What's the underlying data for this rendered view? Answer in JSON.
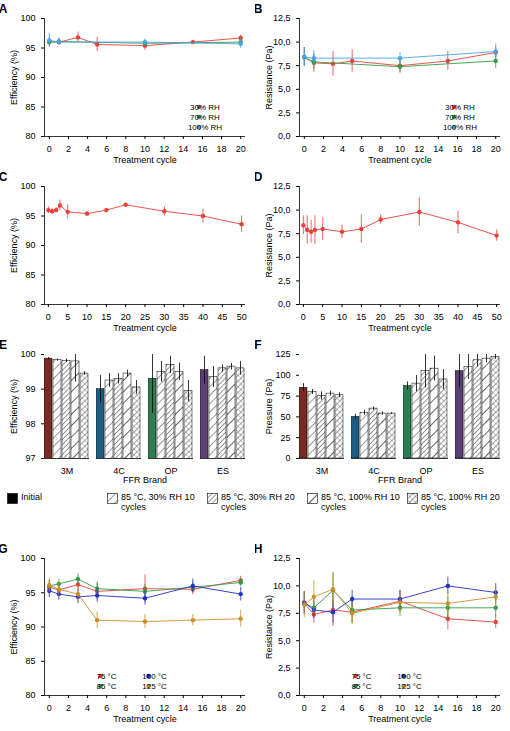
{
  "chart_data": [
    {
      "type": "line",
      "title": "A",
      "x_label": "Treatment cycle",
      "y_label": "Efficiency (%)",
      "xlim": [
        -0.5,
        20.5
      ],
      "xticks": [
        0,
        2,
        4,
        6,
        8,
        10,
        12,
        14,
        16,
        18,
        20
      ],
      "ylim": [
        80,
        100
      ],
      "yticks": [
        80,
        85,
        90,
        95,
        100
      ],
      "legend": "bottom-right",
      "marker": "circle",
      "series": [
        {
          "name": "30% RH",
          "color": "#e8403a",
          "x": [
            0,
            1,
            3,
            5,
            10,
            15,
            20
          ],
          "values": [
            96.0,
            96.0,
            96.8,
            95.6,
            95.4,
            96.0,
            96.7
          ],
          "errors": [
            0.8,
            0.6,
            0.9,
            1.2,
            0.8,
            0.3,
            0.5
          ]
        },
        {
          "name": "70% RH",
          "color": "#2f9e47",
          "x": [
            0,
            1,
            10,
            20
          ],
          "values": [
            96.0,
            96.1,
            95.8,
            96.0
          ],
          "errors": [
            0.6,
            0.5,
            0.6,
            0.5
          ]
        },
        {
          "name": "100% RH",
          "color": "#4aa3e8",
          "x": [
            0,
            1,
            10,
            20
          ],
          "values": [
            96.3,
            96.0,
            96.0,
            95.7
          ],
          "errors": [
            1.2,
            0.5,
            0.5,
            0.8
          ]
        }
      ]
    },
    {
      "type": "line",
      "title": "B",
      "x_label": "Treatment cycle",
      "y_label": "Resistance (Pa)",
      "xlim": [
        -0.5,
        20.5
      ],
      "xticks": [
        0,
        2,
        4,
        6,
        8,
        10,
        12,
        14,
        16,
        18,
        20
      ],
      "ylim": [
        0,
        12.5
      ],
      "yticks": [
        {
          "value": 0,
          "label": "0,0"
        },
        {
          "value": 2.5,
          "label": "2,5"
        },
        {
          "value": 5,
          "label": "5,0"
        },
        {
          "value": 7.5,
          "label": "7,5"
        },
        {
          "value": 10,
          "label": "10,0"
        },
        {
          "value": 12.5,
          "label": "12,5"
        }
      ],
      "legend": "bottom-right",
      "marker": "circle",
      "series": [
        {
          "name": "30% RH",
          "color": "#e8403a",
          "x": [
            0,
            1,
            3,
            5,
            10,
            15,
            20
          ],
          "values": [
            8.4,
            7.8,
            7.7,
            8.0,
            7.5,
            8.0,
            8.9
          ],
          "errors": [
            1.0,
            1.0,
            1.3,
            1.2,
            0.8,
            1.0,
            0.6
          ]
        },
        {
          "name": "70% RH",
          "color": "#2f9e47",
          "x": [
            0,
            1,
            10,
            20
          ],
          "values": [
            8.4,
            7.9,
            7.4,
            8.0
          ],
          "errors": [
            1.0,
            0.8,
            0.6,
            0.8
          ]
        },
        {
          "name": "100% RH",
          "color": "#4aa3e8",
          "x": [
            0,
            1,
            10,
            20
          ],
          "values": [
            8.4,
            8.3,
            8.3,
            9.0
          ],
          "errors": [
            1.0,
            0.8,
            0.6,
            0.8
          ]
        }
      ]
    },
    {
      "type": "line",
      "title": "C",
      "x_label": "Treatment cycle",
      "y_label": "Efficiency (%)",
      "xlim": [
        -1,
        51
      ],
      "xticks": [
        0,
        5,
        10,
        15,
        20,
        25,
        30,
        35,
        40,
        45,
        50
      ],
      "ylim": [
        80,
        100
      ],
      "yticks": [
        80,
        85,
        90,
        95,
        100
      ],
      "marker": "circle",
      "series": [
        {
          "color": "#e8403a",
          "x": [
            0,
            1,
            2,
            3,
            5,
            10,
            15,
            20,
            30,
            40,
            50
          ],
          "values": [
            96.0,
            95.8,
            96.0,
            96.8,
            95.7,
            95.4,
            96.0,
            96.9,
            95.8,
            95.0,
            93.6
          ],
          "errors": [
            0.6,
            0.5,
            0.4,
            0.9,
            1.2,
            0.4,
            0.3,
            0.2,
            0.8,
            1.2,
            1.4
          ]
        }
      ]
    },
    {
      "type": "line",
      "title": "D",
      "x_label": "Treatment cycle",
      "y_label": "Resistance (Pa)",
      "xlim": [
        -1,
        51
      ],
      "xticks": [
        0,
        5,
        10,
        15,
        20,
        25,
        30,
        35,
        40,
        45,
        50
      ],
      "ylim": [
        0,
        12.5
      ],
      "yticks": [
        {
          "value": 0,
          "label": "0,0"
        },
        {
          "value": 2.5,
          "label": "2,5"
        },
        {
          "value": 5,
          "label": "5,0"
        },
        {
          "value": 7.5,
          "label": "7,5"
        },
        {
          "value": 10,
          "label": "10,0"
        },
        {
          "value": 12.5,
          "label": "12,5"
        }
      ],
      "marker": "circle",
      "series": [
        {
          "color": "#e8403a",
          "x": [
            0,
            1,
            2,
            3,
            5,
            10,
            15,
            20,
            30,
            40,
            50
          ],
          "values": [
            8.4,
            7.9,
            7.7,
            7.9,
            8.0,
            7.7,
            8.0,
            9.0,
            9.8,
            8.7,
            7.3
          ],
          "errors": [
            1.0,
            1.5,
            1.2,
            1.5,
            1.2,
            0.7,
            1.5,
            0.5,
            1.5,
            1.2,
            0.6
          ]
        }
      ]
    },
    {
      "type": "bar",
      "title": "E",
      "x_label": "FFR Brand",
      "y_label": "Efficiency (%)",
      "categories": [
        "3M",
        "4C",
        "OP",
        "ES"
      ],
      "ylim": [
        97,
        100
      ],
      "yticks": [
        97,
        98,
        99,
        100
      ],
      "legend": "bottom",
      "series": [
        {
          "name": "Initial",
          "colors": [
            "#7a2a24",
            "#1f5c80",
            "#2e7d52",
            "#5a3f72"
          ],
          "values": [
            99.88,
            99.0,
            99.3,
            99.55
          ],
          "errors": [
            0.03,
            0.4,
            1.0,
            0.4
          ]
        },
        {
          "name": "85 °C, 30% RH 10 cycles",
          "values": [
            99.84,
            99.25,
            99.5,
            99.35
          ],
          "errors": [
            0.03,
            0.2,
            0.3,
            0.3
          ]
        },
        {
          "name": "85 °C, 30% RH 20 cycles",
          "values": [
            99.82,
            99.3,
            99.7,
            99.6
          ],
          "errors": [
            0.05,
            0.15,
            0.25,
            0.1
          ]
        },
        {
          "name": "85 °C, 100% RH 10 cycles",
          "values": [
            99.8,
            99.45,
            99.5,
            99.65
          ],
          "errors": [
            0.6,
            0.1,
            0.25,
            0.1
          ]
        },
        {
          "name": "85 °C, 100% RH 20 cycles",
          "values": [
            99.45,
            99.05,
            98.95,
            99.6
          ],
          "errors": [
            0.05,
            0.2,
            0.3,
            0.2
          ]
        }
      ]
    },
    {
      "type": "bar",
      "title": "F",
      "x_label": "FFR Brand",
      "y_label": "Pressure (Pa)",
      "categories": [
        "3M",
        "4C",
        "OP",
        "ES"
      ],
      "ylim": [
        0,
        125
      ],
      "yticks": [
        0,
        25,
        50,
        75,
        100,
        125
      ],
      "series": [
        {
          "name": "Initial",
          "colors": [
            "#7a2a24",
            "#1f5c80",
            "#2e7d52",
            "#5a3f72"
          ],
          "values": [
            85,
            50,
            87,
            105
          ],
          "errors": [
            5,
            3,
            5,
            20
          ]
        },
        {
          "name": "85 °C, 30% RH 10 cycles",
          "values": [
            80,
            55,
            90,
            110
          ],
          "errors": [
            3,
            3,
            10,
            15
          ]
        },
        {
          "name": "85 °C, 30% RH 20 cycles",
          "values": [
            75,
            60,
            105,
            118
          ],
          "errors": [
            5,
            2,
            20,
            8
          ]
        },
        {
          "name": "85 °C, 100% RH 10 cycles",
          "values": [
            78,
            54,
            108,
            120
          ],
          "errors": [
            3,
            2,
            15,
            5
          ]
        },
        {
          "name": "85 °C, 100% RH 20 cycles",
          "values": [
            76,
            54,
            95,
            122
          ],
          "errors": [
            3,
            1,
            12,
            3
          ]
        }
      ]
    },
    {
      "type": "line",
      "title": "G",
      "x_label": "Treatment cycle",
      "y_label": "Efficiency (%)",
      "xlim": [
        -0.5,
        20.5
      ],
      "xticks": [
        0,
        2,
        4,
        6,
        8,
        10,
        12,
        14,
        16,
        18,
        20
      ],
      "ylim": [
        80,
        100
      ],
      "yticks": [
        80,
        85,
        90,
        95,
        100
      ],
      "legend": "bottom",
      "marker": "circle",
      "series": [
        {
          "name": "75 °C",
          "color": "#e8403a",
          "x": [
            0,
            1,
            3,
            5,
            10,
            15,
            20
          ],
          "values": [
            95.8,
            95.4,
            96.2,
            95.2,
            95.6,
            95.5,
            96.8
          ],
          "errors": [
            1.0,
            0.8,
            1.0,
            1.2,
            2.0,
            0.8,
            0.6
          ]
        },
        {
          "name": "85 °C",
          "color": "#2f9e47",
          "x": [
            0,
            1,
            3,
            5,
            10,
            15,
            20
          ],
          "values": [
            96.0,
            96.3,
            97.0,
            95.6,
            95.2,
            95.8,
            96.5
          ],
          "errors": [
            0.8,
            0.7,
            0.8,
            1.0,
            1.0,
            0.8,
            0.6
          ]
        },
        {
          "name": "100 °C",
          "color": "#2030c8",
          "x": [
            0,
            1,
            3,
            5,
            10,
            15,
            20
          ],
          "values": [
            95.3,
            94.8,
            94.4,
            94.6,
            94.2,
            96.0,
            94.8
          ],
          "errors": [
            1.0,
            0.9,
            1.0,
            1.0,
            1.0,
            1.0,
            1.0
          ]
        },
        {
          "name": "125 °C",
          "color": "#c8902a",
          "x": [
            0,
            1,
            3,
            5,
            10,
            15,
            20
          ],
          "values": [
            96.1,
            95.5,
            94.8,
            91.0,
            90.8,
            91.0,
            91.2
          ],
          "errors": [
            1.0,
            1.0,
            1.2,
            1.2,
            1.0,
            0.8,
            1.2
          ]
        }
      ]
    },
    {
      "type": "line",
      "title": "H",
      "x_label": "Treatment cycle",
      "y_label": "Resistance (Pa)",
      "xlim": [
        -0.5,
        20.5
      ],
      "xticks": [
        0,
        2,
        4,
        6,
        8,
        10,
        12,
        14,
        16,
        18,
        20
      ],
      "ylim": [
        0,
        12.5
      ],
      "yticks": [
        {
          "value": 0,
          "label": "0,0"
        },
        {
          "value": 2.5,
          "label": "2,5"
        },
        {
          "value": 5,
          "label": "5,0"
        },
        {
          "value": 7.5,
          "label": "7,5"
        },
        {
          "value": 10,
          "label": "10,0"
        },
        {
          "value": 12.5,
          "label": "12,5"
        }
      ],
      "legend": "bottom",
      "marker": "circle",
      "series": [
        {
          "name": "75 °C",
          "color": "#e8403a",
          "x": [
            0,
            1,
            3,
            5,
            10,
            15,
            20
          ],
          "values": [
            8.4,
            7.4,
            7.8,
            7.6,
            8.6,
            7.0,
            6.7
          ],
          "errors": [
            1.0,
            0.8,
            1.5,
            1.0,
            1.0,
            1.0,
            0.6
          ]
        },
        {
          "name": "85 °C",
          "color": "#2f9e47",
          "x": [
            0,
            1,
            3,
            5,
            10,
            15,
            20
          ],
          "values": [
            8.4,
            8.0,
            9.6,
            7.8,
            8.0,
            8.0,
            8.0
          ],
          "errors": [
            1.0,
            0.8,
            1.6,
            1.2,
            0.8,
            1.0,
            0.8
          ]
        },
        {
          "name": "100 °C",
          "color": "#2030c8",
          "x": [
            0,
            1,
            3,
            5,
            10,
            15,
            20
          ],
          "values": [
            8.5,
            7.8,
            7.6,
            8.8,
            8.8,
            10.0,
            9.4
          ],
          "errors": [
            1.0,
            0.8,
            1.0,
            0.8,
            0.8,
            0.8,
            0.8
          ]
        },
        {
          "name": "125 °C",
          "color": "#c8902a",
          "x": [
            0,
            1,
            3,
            5,
            10,
            15,
            20
          ],
          "values": [
            8.3,
            9.0,
            9.7,
            7.5,
            8.5,
            8.4,
            9.0
          ],
          "errors": [
            1.2,
            1.5,
            1.5,
            1.0,
            1.0,
            1.0,
            1.0
          ]
        }
      ]
    }
  ]
}
